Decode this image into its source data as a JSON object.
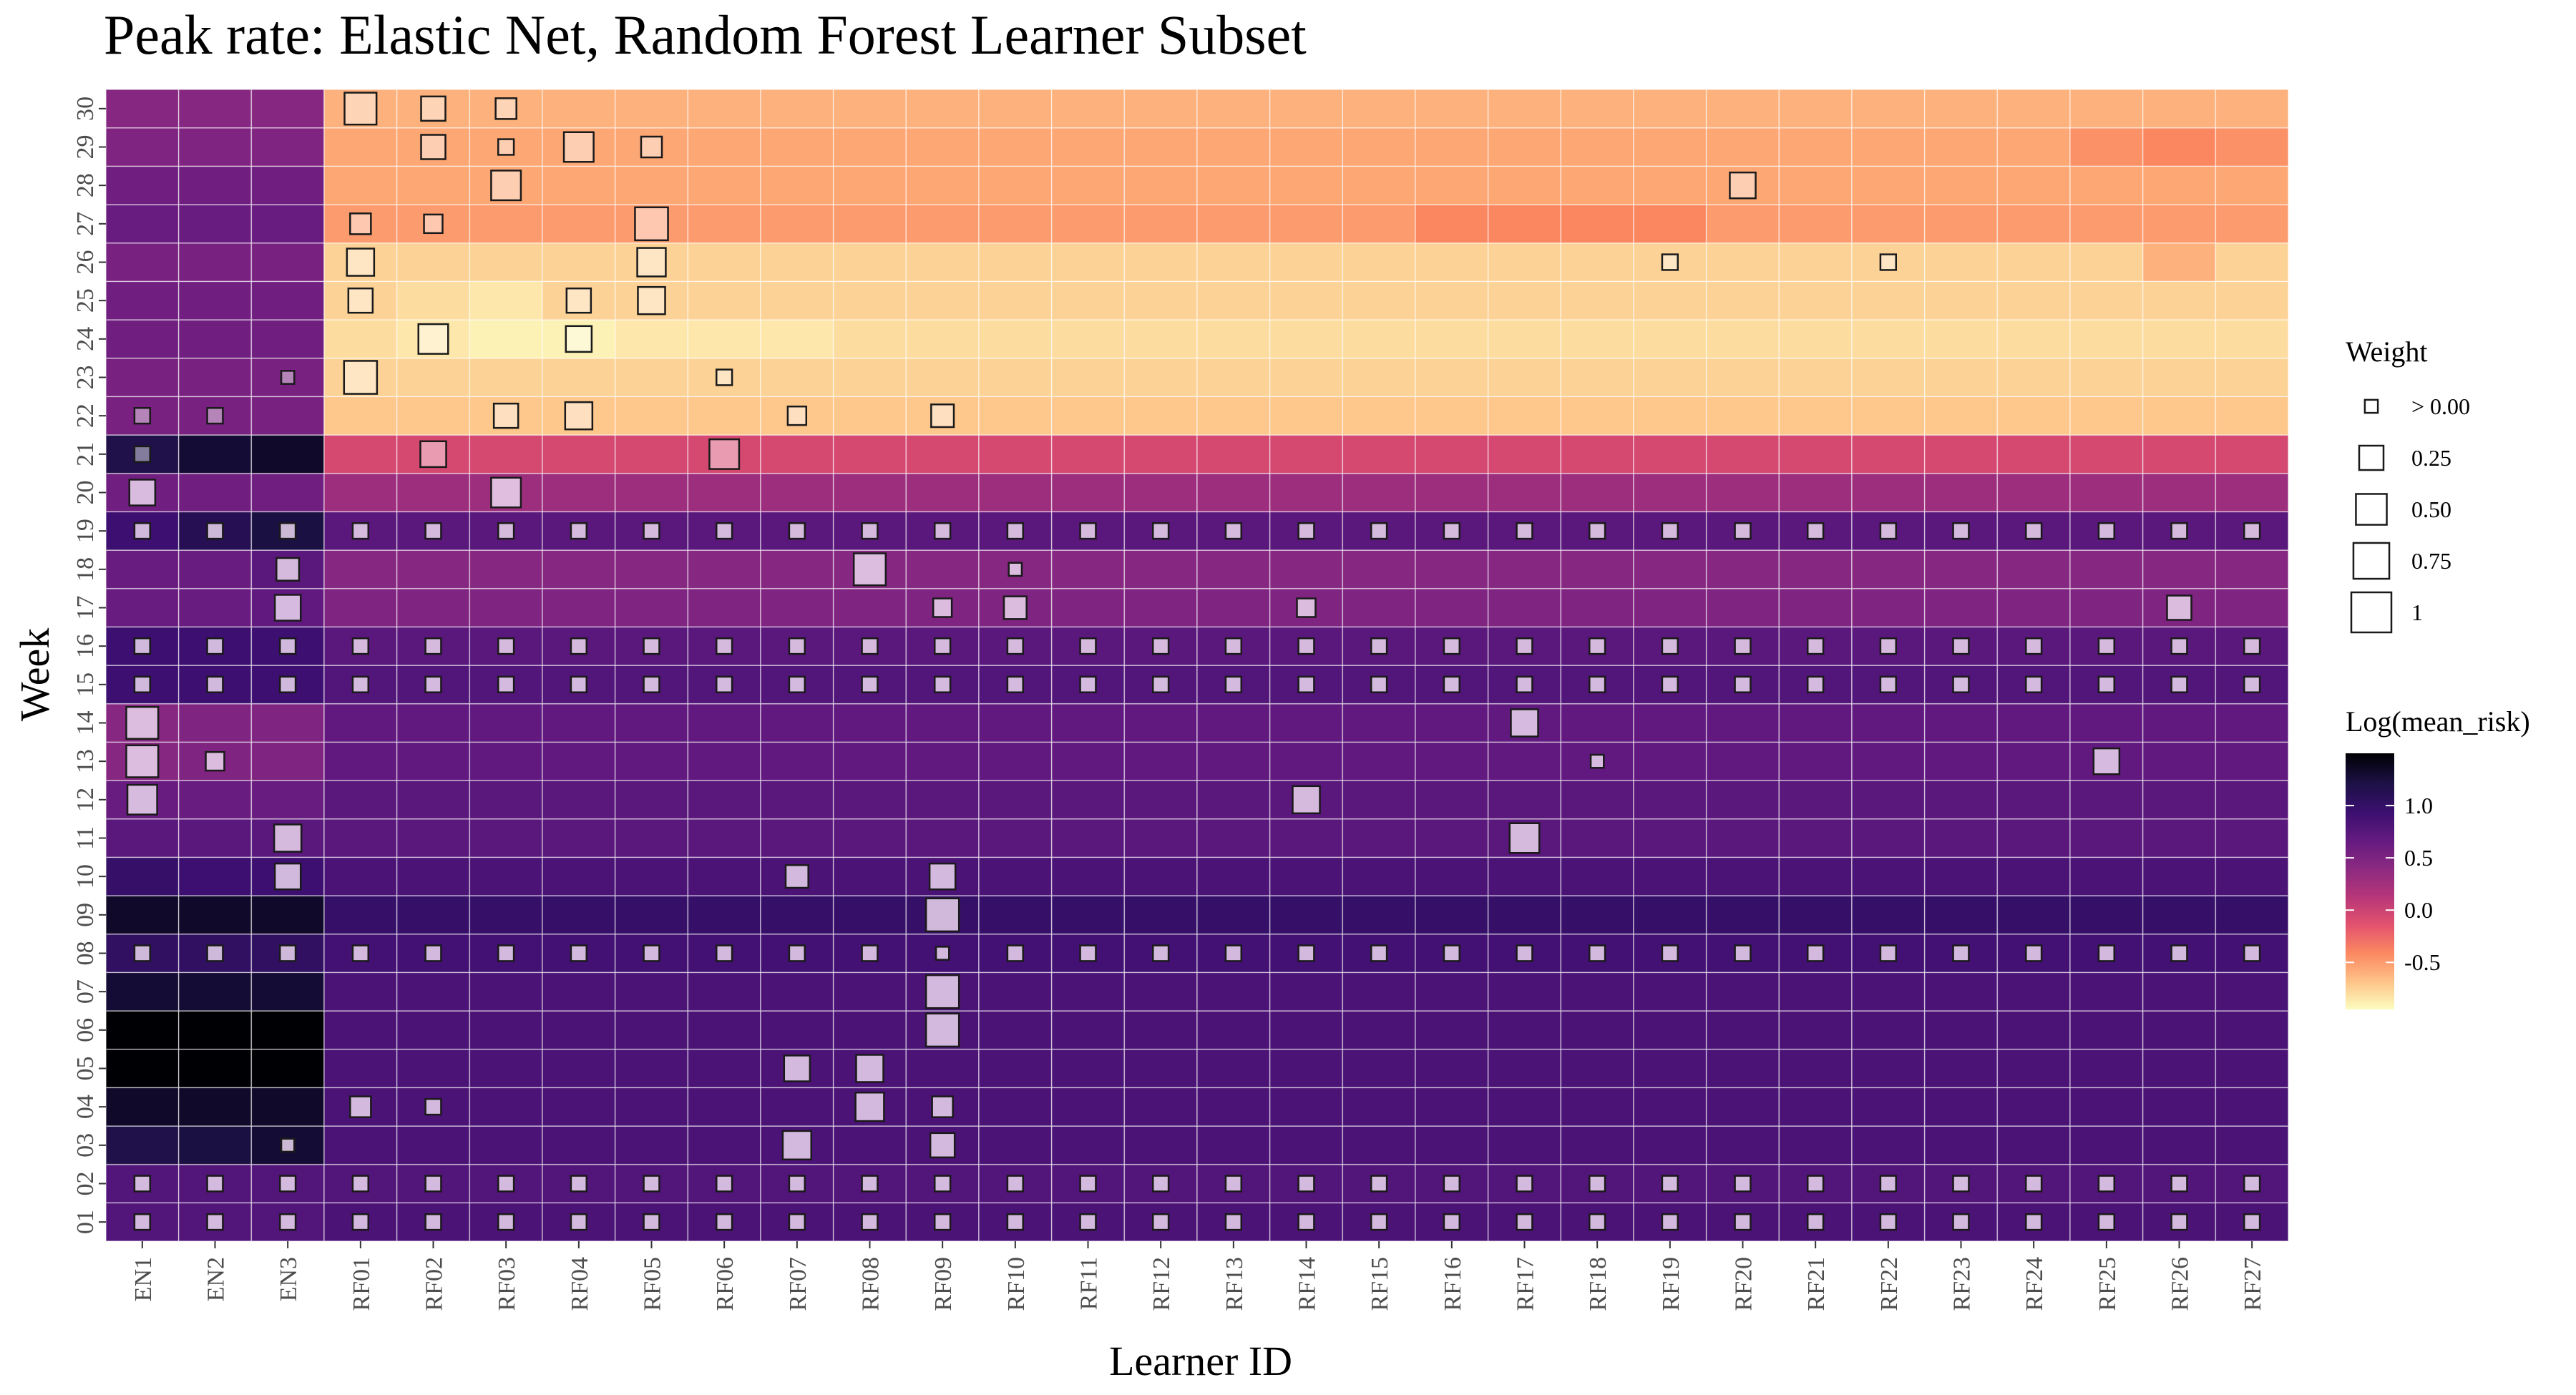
{
  "chart_data": {
    "type": "heatmap",
    "title": "Peak rate: Elastic Net, Random Forest Learner Subset",
    "xlabel": "Learner ID",
    "ylabel": "Week",
    "x": [
      "EN1",
      "EN2",
      "EN3",
      "RF01",
      "RF02",
      "RF03",
      "RF04",
      "RF05",
      "RF06",
      "RF07",
      "RF08",
      "RF09",
      "RF10",
      "RF11",
      "RF12",
      "RF13",
      "RF14",
      "RF15",
      "RF16",
      "RF17",
      "RF18",
      "RF19",
      "RF20",
      "RF21",
      "RF22",
      "RF23",
      "RF24",
      "RF25",
      "RF26",
      "RF27"
    ],
    "y": [
      "01",
      "02",
      "03",
      "04",
      "05",
      "06",
      "07",
      "08",
      "09",
      "10",
      "11",
      "12",
      "13",
      "14",
      "15",
      "16",
      "17",
      "18",
      "19",
      "20",
      "21",
      "22",
      "23",
      "24",
      "25",
      "26",
      "27",
      "28",
      "29",
      "30"
    ],
    "fill_legend": {
      "title": "Log(mean_risk)",
      "breaks": [
        1.0,
        0.5,
        0.0,
        -0.5
      ],
      "break_labels": [
        "1.0",
        "0.5",
        "0.0",
        "-0.5"
      ],
      "range": [
        -0.95,
        1.5
      ],
      "colors": [
        "#fcfdbf",
        "#fec287",
        "#fb8861",
        "#e3526e",
        "#b63679",
        "#8c2981",
        "#641a80",
        "#3b0f70",
        "#1d1147",
        "#000004"
      ]
    },
    "size_legend": {
      "title": "Weight",
      "breaks": [
        0.0,
        0.25,
        0.5,
        0.75,
        1.0
      ],
      "labels": [
        "> 0.00",
        "0.25",
        "0.50",
        "0.75",
        "1"
      ]
    },
    "fill": {
      "rows_default": {
        "01": 0.85,
        "02": 0.8,
        "03": 0.85,
        "04": 0.85,
        "05": 0.85,
        "06": 0.85,
        "07": 0.85,
        "08": 0.9,
        "09": 1.0,
        "10": 0.85,
        "11": 0.75,
        "12": 0.75,
        "13": 0.7,
        "14": 0.7,
        "15": 0.8,
        "16": 0.75,
        "17": 0.5,
        "18": 0.45,
        "19": 0.75,
        "20": 0.3,
        "21": -0.05,
        "22": -0.7,
        "23": -0.75,
        "24": -0.8,
        "25": -0.75,
        "26": -0.75,
        "27": -0.5,
        "28": -0.55,
        "29": -0.55,
        "30": -0.6
      },
      "en_by_row": {
        "01": [
          0.8,
          0.8,
          0.8
        ],
        "02": [
          0.8,
          0.8,
          0.8
        ],
        "03": [
          1.2,
          1.25,
          1.3
        ],
        "04": [
          1.35,
          1.35,
          1.35
        ],
        "05": [
          1.5,
          1.5,
          1.5
        ],
        "06": [
          1.5,
          1.5,
          1.5
        ],
        "07": [
          1.3,
          1.3,
          1.3
        ],
        "08": [
          1.05,
          1.05,
          1.05
        ],
        "09": [
          1.35,
          1.35,
          1.35
        ],
        "10": [
          1.0,
          0.95,
          0.95
        ],
        "11": [
          0.75,
          0.75,
          0.75
        ],
        "12": [
          0.65,
          0.65,
          0.65
        ],
        "13": [
          0.45,
          0.5,
          0.5
        ],
        "14": [
          0.45,
          0.5,
          0.5
        ],
        "15": [
          0.95,
          0.95,
          0.95
        ],
        "16": [
          0.95,
          0.95,
          0.95
        ],
        "17": [
          0.65,
          0.65,
          0.7
        ],
        "18": [
          0.65,
          0.65,
          0.75
        ],
        "19": [
          0.95,
          1.15,
          1.25
        ],
        "20": [
          0.6,
          0.6,
          0.6
        ],
        "21": [
          1.2,
          1.3,
          1.35
        ],
        "22": [
          0.55,
          0.55,
          0.55
        ],
        "23": [
          0.55,
          0.55,
          0.55
        ],
        "24": [
          0.6,
          0.6,
          0.6
        ],
        "25": [
          0.6,
          0.6,
          0.6
        ],
        "26": [
          0.55,
          0.55,
          0.55
        ],
        "27": [
          0.65,
          0.65,
          0.65
        ],
        "28": [
          0.6,
          0.6,
          0.6
        ],
        "29": [
          0.5,
          0.5,
          0.5
        ],
        "30": [
          0.45,
          0.45,
          0.45
        ]
      },
      "overrides": [
        {
          "x": "RF02",
          "y": "24",
          "value": -0.85
        },
        {
          "x": "RF03",
          "y": "24",
          "value": -0.9
        },
        {
          "x": "RF04",
          "y": "24",
          "value": -0.9
        },
        {
          "x": "RF05",
          "y": "24",
          "value": -0.85
        },
        {
          "x": "RF06",
          "y": "24",
          "value": -0.85
        },
        {
          "x": "RF07",
          "y": "24",
          "value": -0.85
        },
        {
          "x": "RF02",
          "y": "25",
          "value": -0.8
        },
        {
          "x": "RF03",
          "y": "25",
          "value": -0.85
        },
        {
          "x": "RF16",
          "y": "27",
          "value": -0.4
        },
        {
          "x": "RF17",
          "y": "27",
          "value": -0.4
        },
        {
          "x": "RF18",
          "y": "27",
          "value": -0.4
        },
        {
          "x": "RF19",
          "y": "27",
          "value": -0.4
        },
        {
          "x": "RF26",
          "y": "29",
          "value": -0.4
        },
        {
          "x": "RF27",
          "y": "29",
          "value": -0.45
        },
        {
          "x": "RF25",
          "y": "29",
          "value": -0.45
        },
        {
          "x": "RF26",
          "y": "26",
          "value": -0.6
        }
      ]
    },
    "row_weight": {
      "01": 0.05,
      "02": 0.05,
      "08": 0.05,
      "15": 0.05,
      "16": 0.05,
      "19": 0.05
    },
    "weights": [
      {
        "x": "EN1",
        "y": "13",
        "value": 0.55
      },
      {
        "x": "EN1",
        "y": "12",
        "value": 0.45
      },
      {
        "x": "EN1",
        "y": "14",
        "value": 0.55
      },
      {
        "x": "EN1",
        "y": "20",
        "value": 0.3
      },
      {
        "x": "EN1",
        "y": "21",
        "value": 0.05
      },
      {
        "x": "EN1",
        "y": "22",
        "value": 0.05
      },
      {
        "x": "EN2",
        "y": "13",
        "value": 0.1
      },
      {
        "x": "EN2",
        "y": "22",
        "value": 0.05
      },
      {
        "x": "EN3",
        "y": "11",
        "value": 0.35
      },
      {
        "x": "EN3",
        "y": "10",
        "value": 0.3
      },
      {
        "x": "EN3",
        "y": "17",
        "value": 0.3
      },
      {
        "x": "EN3",
        "y": "18",
        "value": 0.2
      },
      {
        "x": "EN3",
        "y": "23",
        "value": 0.02
      },
      {
        "x": "EN3",
        "y": "03",
        "value": 0.02
      },
      {
        "x": "RF01",
        "y": "30",
        "value": 0.55
      },
      {
        "x": "RF01",
        "y": "27",
        "value": 0.15
      },
      {
        "x": "RF01",
        "y": "26",
        "value": 0.35
      },
      {
        "x": "RF01",
        "y": "25",
        "value": 0.25
      },
      {
        "x": "RF01",
        "y": "23",
        "value": 0.6
      },
      {
        "x": "RF01",
        "y": "04",
        "value": 0.15
      },
      {
        "x": "RF02",
        "y": "30",
        "value": 0.25
      },
      {
        "x": "RF02",
        "y": "29",
        "value": 0.25
      },
      {
        "x": "RF02",
        "y": "27",
        "value": 0.1
      },
      {
        "x": "RF02",
        "y": "24",
        "value": 0.45
      },
      {
        "x": "RF02",
        "y": "21",
        "value": 0.3
      },
      {
        "x": "RF02",
        "y": "04",
        "value": 0.05
      },
      {
        "x": "RF03",
        "y": "30",
        "value": 0.15
      },
      {
        "x": "RF03",
        "y": "29",
        "value": 0.05
      },
      {
        "x": "RF03",
        "y": "28",
        "value": 0.45
      },
      {
        "x": "RF03",
        "y": "22",
        "value": 0.25
      },
      {
        "x": "RF03",
        "y": "20",
        "value": 0.45
      },
      {
        "x": "RF04",
        "y": "29",
        "value": 0.45
      },
      {
        "x": "RF04",
        "y": "25",
        "value": 0.25
      },
      {
        "x": "RF04",
        "y": "24",
        "value": 0.3
      },
      {
        "x": "RF04",
        "y": "22",
        "value": 0.35
      },
      {
        "x": "RF05",
        "y": "29",
        "value": 0.15
      },
      {
        "x": "RF05",
        "y": "27",
        "value": 0.6
      },
      {
        "x": "RF05",
        "y": "26",
        "value": 0.4
      },
      {
        "x": "RF05",
        "y": "25",
        "value": 0.35
      },
      {
        "x": "RF06",
        "y": "23",
        "value": 0.05
      },
      {
        "x": "RF06",
        "y": "21",
        "value": 0.45
      },
      {
        "x": "RF07",
        "y": "22",
        "value": 0.1
      },
      {
        "x": "RF07",
        "y": "10",
        "value": 0.2
      },
      {
        "x": "RF07",
        "y": "05",
        "value": 0.3
      },
      {
        "x": "RF07",
        "y": "03",
        "value": 0.4
      },
      {
        "x": "RF08",
        "y": "18",
        "value": 0.55
      },
      {
        "x": "RF08",
        "y": "05",
        "value": 0.35
      },
      {
        "x": "RF08",
        "y": "04",
        "value": 0.4
      },
      {
        "x": "RF09",
        "y": "22",
        "value": 0.2
      },
      {
        "x": "RF09",
        "y": "17",
        "value": 0.1
      },
      {
        "x": "RF09",
        "y": "10",
        "value": 0.3
      },
      {
        "x": "RF09",
        "y": "09",
        "value": 0.6
      },
      {
        "x": "RF09",
        "y": "08",
        "value": 0.02
      },
      {
        "x": "RF09",
        "y": "07",
        "value": 0.6
      },
      {
        "x": "RF09",
        "y": "06",
        "value": 0.6
      },
      {
        "x": "RF09",
        "y": "04",
        "value": 0.15
      },
      {
        "x": "RF09",
        "y": "03",
        "value": 0.25
      },
      {
        "x": "RF10",
        "y": "18",
        "value": 0.02
      },
      {
        "x": "RF10",
        "y": "17",
        "value": 0.2
      },
      {
        "x": "RF14",
        "y": "17",
        "value": 0.1
      },
      {
        "x": "RF14",
        "y": "12",
        "value": 0.35
      },
      {
        "x": "RF17",
        "y": "14",
        "value": 0.35
      },
      {
        "x": "RF17",
        "y": "11",
        "value": 0.45
      },
      {
        "x": "RF18",
        "y": "13",
        "value": 0.02
      },
      {
        "x": "RF19",
        "y": "26",
        "value": 0.05
      },
      {
        "x": "RF20",
        "y": "28",
        "value": 0.3
      },
      {
        "x": "RF22",
        "y": "26",
        "value": 0.05
      },
      {
        "x": "RF25",
        "y": "13",
        "value": 0.3
      },
      {
        "x": "RF26",
        "y": "17",
        "value": 0.25
      }
    ]
  }
}
